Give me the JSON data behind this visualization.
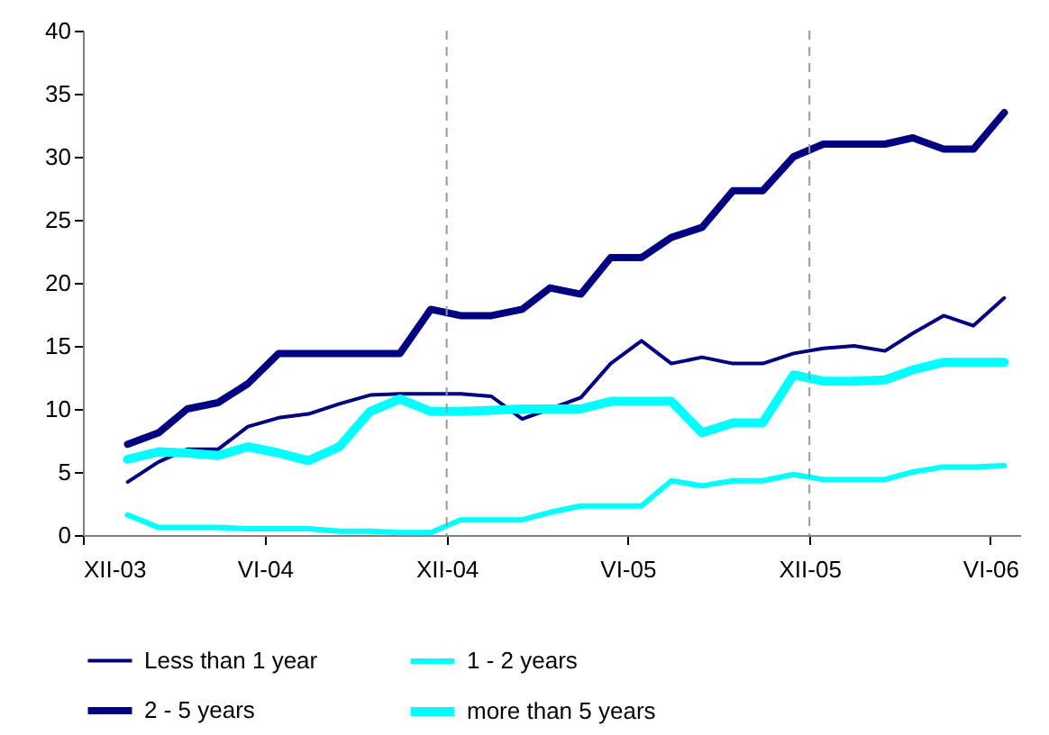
{
  "chart_data": {
    "type": "line",
    "x": [
      "2004-01-15",
      "2004-02-15",
      "2004-03-15",
      "2004-04-15",
      "2004-05-15",
      "2004-06-15",
      "2004-07-15",
      "2004-08-15",
      "2004-09-15",
      "2004-10-15",
      "2004-11-15",
      "2004-12-15",
      "2005-01-15",
      "2005-02-15",
      "2005-03-15",
      "2005-04-15",
      "2005-05-15",
      "2005-06-15",
      "2005-07-15",
      "2005-08-15",
      "2005-09-15",
      "2005-10-15",
      "2005-11-15",
      "2005-12-15",
      "2006-01-15",
      "2006-02-15",
      "2006-03-15",
      "2006-04-15",
      "2006-05-15",
      "2006-06-15"
    ],
    "series": [
      {
        "name": "Less than 1 year",
        "color": "#000080",
        "values": [
          4.2,
          5.8,
          6.8,
          6.8,
          8.6,
          9.3,
          9.6,
          10.4,
          11.1,
          11.2,
          11.2,
          11.2,
          11.0,
          9.2,
          10.0,
          10.9,
          13.6,
          15.4,
          13.6,
          14.1,
          13.6,
          13.6,
          14.4,
          14.8,
          15.0,
          14.6,
          16.0,
          17.4,
          16.6,
          18.8
        ]
      },
      {
        "name": "1 - 2 years",
        "color": "#00ffff",
        "values": [
          1.6,
          0.6,
          0.6,
          0.6,
          0.5,
          0.5,
          0.5,
          0.3,
          0.3,
          0.2,
          0.2,
          1.2,
          1.2,
          1.2,
          1.8,
          2.3,
          2.3,
          2.3,
          4.3,
          3.9,
          4.3,
          4.3,
          4.8,
          4.4,
          4.4,
          4.4,
          5.0,
          5.4,
          5.4,
          5.5
        ]
      },
      {
        "name": "2 - 5 years",
        "color": "#000080",
        "values": [
          7.2,
          8.1,
          10.0,
          10.5,
          12.0,
          14.4,
          14.4,
          14.4,
          14.4,
          14.4,
          17.9,
          17.4,
          17.4,
          17.9,
          19.6,
          19.1,
          22.0,
          22.0,
          23.6,
          24.4,
          27.3,
          27.3,
          30.0,
          31.0,
          31.0,
          31.0,
          31.5,
          30.6,
          30.6,
          33.5
        ]
      },
      {
        "name": "more than 5 years",
        "color": "#00ffff",
        "values": [
          6.0,
          6.6,
          6.5,
          6.3,
          7.0,
          6.5,
          5.9,
          7.0,
          9.8,
          10.8,
          9.8,
          9.8,
          9.9,
          10.0,
          10.0,
          10.0,
          10.6,
          10.6,
          10.6,
          8.1,
          8.9,
          8.9,
          12.7,
          12.2,
          12.2,
          12.3,
          13.1,
          13.7,
          13.7,
          13.7
        ]
      }
    ],
    "xlim": [
      "2003-12-01",
      "2006-07-01"
    ],
    "xticks": [
      {
        "value": "2003-12-01",
        "label": "XII-03"
      },
      {
        "value": "2004-06-01",
        "label": "VI-04"
      },
      {
        "value": "2004-12-01",
        "label": "XII-04"
      },
      {
        "value": "2005-06-01",
        "label": "VI-05"
      },
      {
        "value": "2005-12-01",
        "label": "XII-05"
      },
      {
        "value": "2006-06-01",
        "label": "VI-06"
      }
    ],
    "ylim": [
      0,
      40
    ],
    "yticks": [
      0,
      5,
      10,
      15,
      20,
      25,
      30,
      35,
      40
    ],
    "ref_lines": [
      {
        "axis": "x",
        "value": "2004-12-01",
        "color": "#999999",
        "line_style": "dashed"
      },
      {
        "axis": "x",
        "value": "2005-12-01",
        "color": "#999999",
        "line_style": "dashed"
      }
    ],
    "grid": false,
    "legend": "bottom",
    "marker": "none",
    "line_style": "solid"
  }
}
